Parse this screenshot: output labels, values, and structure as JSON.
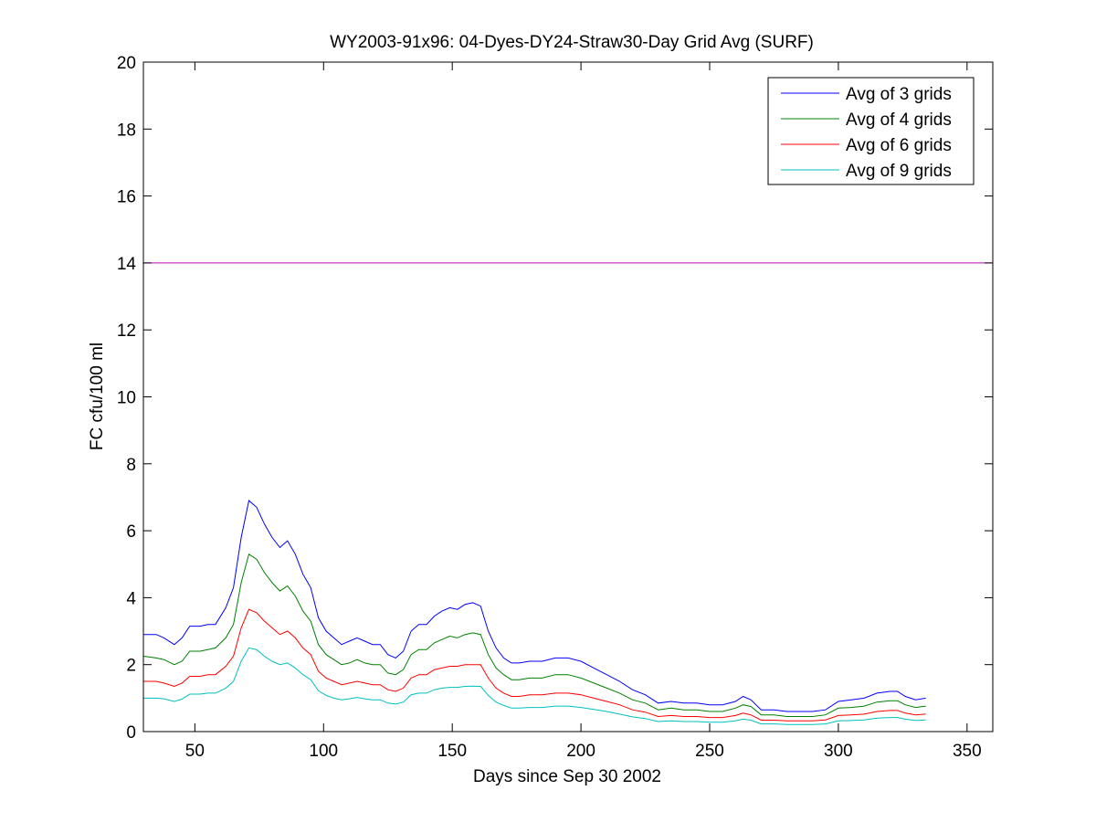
{
  "chart_data": {
    "type": "line",
    "title": "WY2003-91x96: 04-Dyes-DY24-Straw30-Day Grid Avg (SURF)",
    "xlabel": "Days since Sep 30 2002",
    "ylabel": "FC cfu/100 ml",
    "xlim": [
      30,
      360
    ],
    "ylim": [
      0,
      20
    ],
    "xticks": [
      50,
      100,
      150,
      200,
      250,
      300,
      350
    ],
    "yticks": [
      0,
      2,
      4,
      6,
      8,
      10,
      12,
      14,
      16,
      18,
      20
    ],
    "grid": false,
    "legend_position": "top-right",
    "reference_line": {
      "y": 14,
      "color": "#bf00bf"
    },
    "x": [
      30,
      35,
      38,
      42,
      45,
      48,
      52,
      55,
      58,
      62,
      65,
      68,
      71,
      74,
      77,
      80,
      83,
      86,
      89,
      92,
      95,
      98,
      101,
      104,
      107,
      110,
      113,
      116,
      119,
      122,
      125,
      128,
      131,
      134,
      137,
      140,
      143,
      146,
      149,
      152,
      155,
      158,
      161,
      164,
      167,
      170,
      173,
      176,
      180,
      185,
      190,
      195,
      200,
      205,
      210,
      215,
      220,
      225,
      230,
      235,
      240,
      245,
      250,
      255,
      260,
      263,
      266,
      270,
      275,
      280,
      285,
      290,
      295,
      300,
      305,
      310,
      315,
      320,
      323,
      326,
      330,
      334
    ],
    "series": [
      {
        "name": "Avg of 3 grids",
        "color": "#0000ff",
        "values": [
          2.9,
          2.9,
          2.8,
          2.6,
          2.8,
          3.15,
          3.15,
          3.2,
          3.2,
          3.7,
          4.3,
          5.8,
          6.9,
          6.7,
          6.2,
          5.8,
          5.5,
          5.7,
          5.3,
          4.7,
          4.3,
          3.4,
          3.0,
          2.8,
          2.6,
          2.7,
          2.8,
          2.7,
          2.6,
          2.6,
          2.3,
          2.2,
          2.4,
          3.0,
          3.2,
          3.2,
          3.45,
          3.6,
          3.7,
          3.65,
          3.8,
          3.85,
          3.75,
          3.0,
          2.5,
          2.2,
          2.05,
          2.05,
          2.1,
          2.1,
          2.2,
          2.2,
          2.1,
          1.9,
          1.7,
          1.5,
          1.25,
          1.1,
          0.85,
          0.9,
          0.85,
          0.85,
          0.8,
          0.8,
          0.9,
          1.05,
          0.95,
          0.65,
          0.65,
          0.6,
          0.6,
          0.6,
          0.65,
          0.9,
          0.95,
          1.0,
          1.15,
          1.2,
          1.2,
          1.05,
          0.95,
          1.0
        ]
      },
      {
        "name": "Avg of 4 grids",
        "color": "#008000",
        "values": [
          2.25,
          2.2,
          2.15,
          2.0,
          2.1,
          2.4,
          2.4,
          2.45,
          2.5,
          2.8,
          3.2,
          4.45,
          5.3,
          5.15,
          4.75,
          4.45,
          4.2,
          4.35,
          4.05,
          3.6,
          3.3,
          2.6,
          2.3,
          2.15,
          2.0,
          2.05,
          2.15,
          2.05,
          2.0,
          2.0,
          1.75,
          1.7,
          1.85,
          2.3,
          2.45,
          2.45,
          2.65,
          2.75,
          2.85,
          2.8,
          2.9,
          2.95,
          2.9,
          2.3,
          1.9,
          1.7,
          1.55,
          1.55,
          1.6,
          1.6,
          1.7,
          1.7,
          1.6,
          1.45,
          1.3,
          1.15,
          0.95,
          0.85,
          0.65,
          0.7,
          0.65,
          0.65,
          0.6,
          0.6,
          0.7,
          0.8,
          0.75,
          0.5,
          0.5,
          0.45,
          0.45,
          0.45,
          0.5,
          0.7,
          0.72,
          0.76,
          0.88,
          0.92,
          0.92,
          0.8,
          0.72,
          0.76
        ]
      },
      {
        "name": "Avg of 6 grids",
        "color": "#ff0000",
        "values": [
          1.5,
          1.5,
          1.45,
          1.35,
          1.45,
          1.65,
          1.65,
          1.7,
          1.7,
          1.95,
          2.25,
          3.1,
          3.65,
          3.55,
          3.3,
          3.1,
          2.9,
          3.0,
          2.8,
          2.5,
          2.3,
          1.8,
          1.6,
          1.5,
          1.4,
          1.45,
          1.5,
          1.45,
          1.4,
          1.4,
          1.25,
          1.2,
          1.3,
          1.6,
          1.7,
          1.7,
          1.85,
          1.9,
          1.95,
          1.95,
          2.0,
          2.0,
          2.0,
          1.6,
          1.3,
          1.15,
          1.05,
          1.05,
          1.1,
          1.1,
          1.15,
          1.15,
          1.1,
          1.0,
          0.9,
          0.8,
          0.65,
          0.58,
          0.45,
          0.48,
          0.45,
          0.45,
          0.42,
          0.42,
          0.48,
          0.55,
          0.5,
          0.34,
          0.34,
          0.32,
          0.32,
          0.32,
          0.35,
          0.48,
          0.5,
          0.52,
          0.6,
          0.63,
          0.63,
          0.55,
          0.5,
          0.52
        ]
      },
      {
        "name": "Avg of 9 grids",
        "color": "#00bfbf",
        "values": [
          1.0,
          1.0,
          0.98,
          0.9,
          0.97,
          1.12,
          1.12,
          1.15,
          1.15,
          1.3,
          1.5,
          2.1,
          2.5,
          2.45,
          2.25,
          2.1,
          2.0,
          2.05,
          1.9,
          1.7,
          1.55,
          1.22,
          1.08,
          1.0,
          0.95,
          0.98,
          1.02,
          0.98,
          0.95,
          0.95,
          0.85,
          0.82,
          0.88,
          1.1,
          1.15,
          1.15,
          1.25,
          1.3,
          1.32,
          1.32,
          1.35,
          1.36,
          1.35,
          1.08,
          0.88,
          0.78,
          0.7,
          0.7,
          0.72,
          0.72,
          0.76,
          0.76,
          0.72,
          0.66,
          0.6,
          0.52,
          0.44,
          0.39,
          0.3,
          0.32,
          0.3,
          0.3,
          0.28,
          0.28,
          0.32,
          0.37,
          0.34,
          0.23,
          0.23,
          0.21,
          0.21,
          0.21,
          0.23,
          0.32,
          0.33,
          0.35,
          0.4,
          0.42,
          0.42,
          0.37,
          0.33,
          0.35
        ]
      }
    ]
  }
}
